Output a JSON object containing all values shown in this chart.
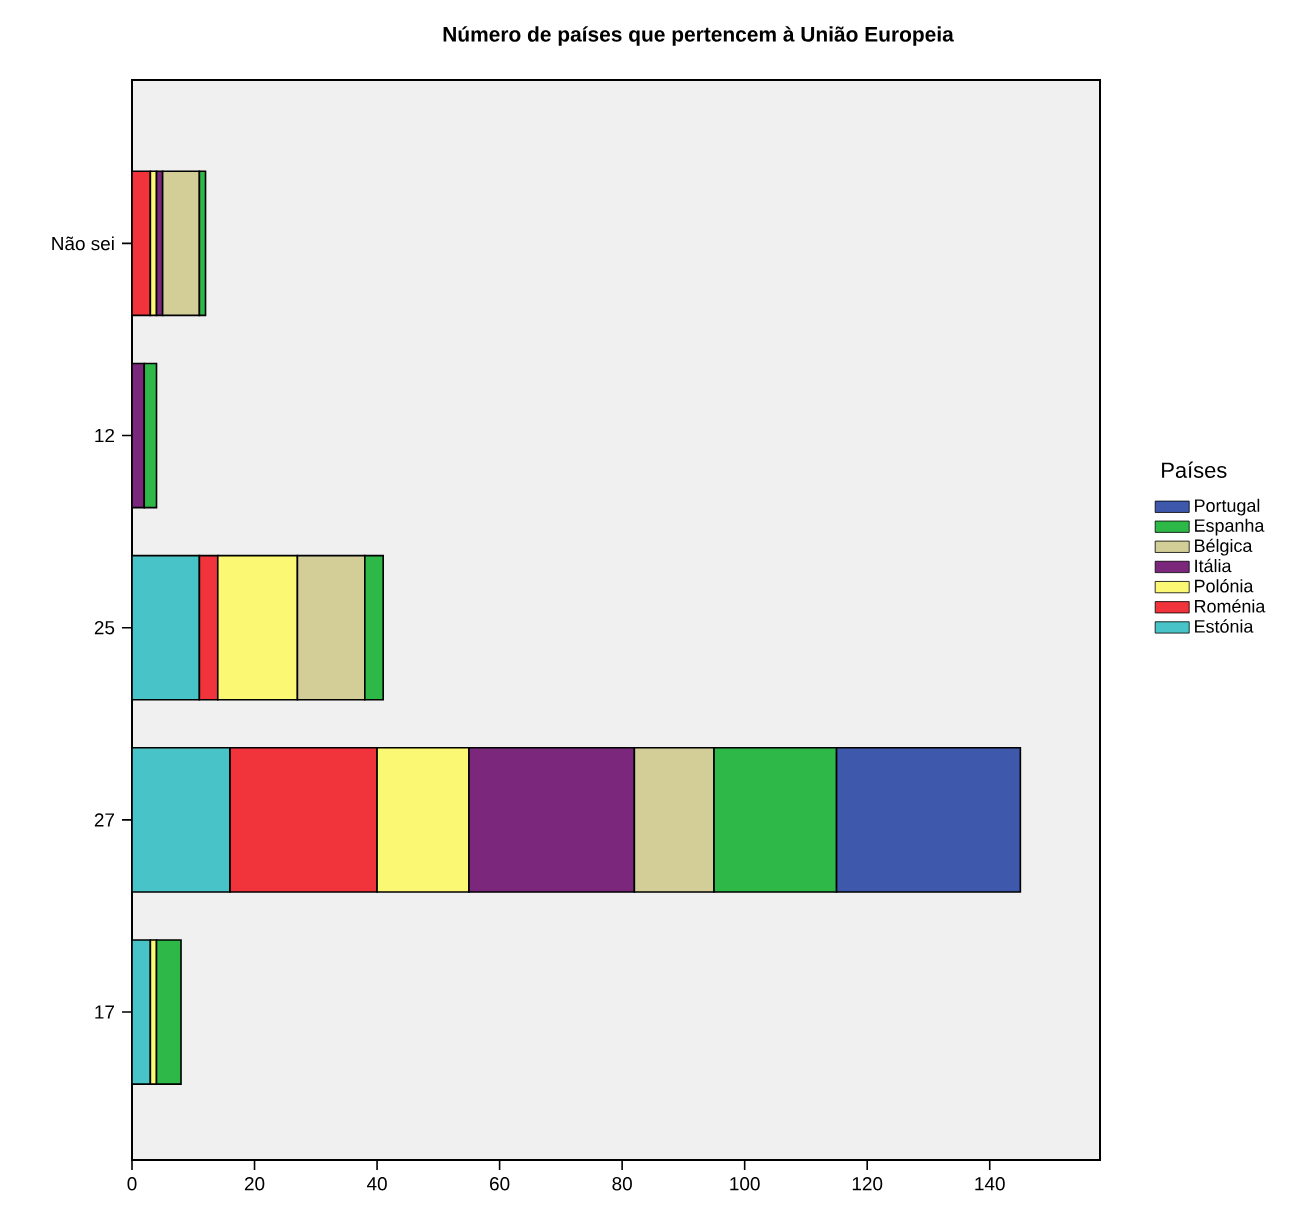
{
  "chart_data": {
    "type": "bar",
    "orientation": "horizontal",
    "stacked": true,
    "title": "Número de países que pertencem à União Europeia",
    "legend_title": "Países",
    "legend": "right",
    "categories": [
      "Não sei",
      "12",
      "25",
      "27",
      "17"
    ],
    "xlim": [
      0,
      158
    ],
    "xticks": [
      0,
      20,
      40,
      60,
      80,
      100,
      120,
      140
    ],
    "grid": false,
    "series": [
      {
        "name": "Estónia",
        "color": "#48c4c8",
        "values": [
          null,
          null,
          11,
          16,
          3
        ]
      },
      {
        "name": "Roménia",
        "color": "#f1333b",
        "values": [
          3,
          null,
          3,
          24,
          null
        ]
      },
      {
        "name": "Polónia",
        "color": "#fbf873",
        "values": [
          1,
          null,
          13,
          15,
          1
        ]
      },
      {
        "name": "Itália",
        "color": "#7b287c",
        "values": [
          1,
          2,
          null,
          27,
          null
        ]
      },
      {
        "name": "Bélgica",
        "color": "#d3ce97",
        "values": [
          6,
          null,
          11,
          13,
          null
        ]
      },
      {
        "name": "Espanha",
        "color": "#2eb848",
        "values": [
          1,
          2,
          3,
          20,
          4
        ]
      },
      {
        "name": "Portugal",
        "color": "#3e58ac",
        "values": [
          null,
          null,
          null,
          30,
          null
        ]
      }
    ]
  }
}
